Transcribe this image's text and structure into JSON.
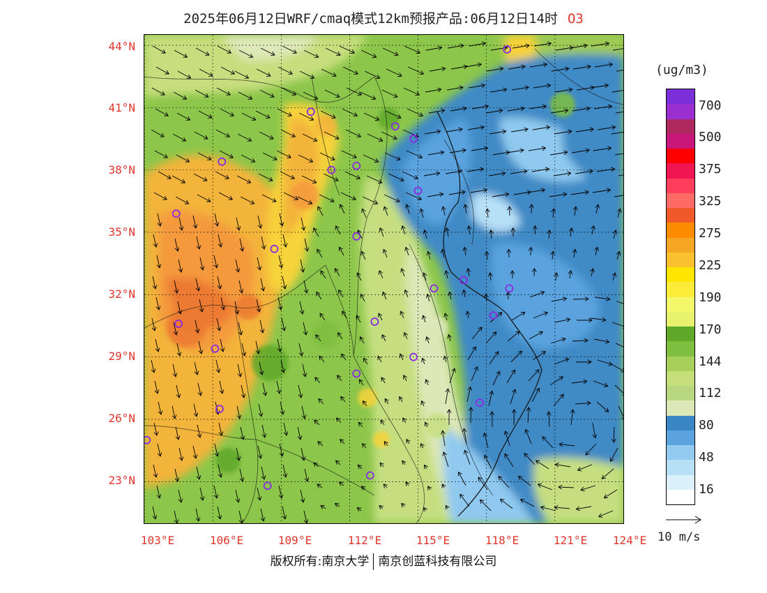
{
  "header": {
    "title": "2025年06月12日WRF/cmaq模式12km预报产品:06月12日14时",
    "species": "O3"
  },
  "map": {
    "lat_labels": [
      "44°N",
      "41°N",
      "38°N",
      "35°N",
      "32°N",
      "29°N",
      "26°N",
      "23°N"
    ],
    "lon_labels": [
      "103°E",
      "106°E",
      "109°E",
      "112°E",
      "115°E",
      "118°E",
      "121°E",
      "124°E"
    ],
    "lon_range": [
      103,
      124
    ],
    "lat_range": [
      21,
      44.5
    ],
    "station_color": "#8a2be2",
    "stations": [
      {
        "lon": 118.9,
        "lat": 43.8
      },
      {
        "lon": 110.3,
        "lat": 40.8
      },
      {
        "lon": 114.0,
        "lat": 40.1
      },
      {
        "lon": 114.8,
        "lat": 39.5
      },
      {
        "lon": 106.4,
        "lat": 38.4
      },
      {
        "lon": 111.2,
        "lat": 38.0
      },
      {
        "lon": 112.3,
        "lat": 38.2
      },
      {
        "lon": 115.0,
        "lat": 37.0
      },
      {
        "lon": 104.4,
        "lat": 35.9
      },
      {
        "lon": 112.3,
        "lat": 34.8
      },
      {
        "lon": 108.7,
        "lat": 34.2
      },
      {
        "lon": 115.7,
        "lat": 32.3
      },
      {
        "lon": 117.0,
        "lat": 32.7
      },
      {
        "lon": 119.0,
        "lat": 32.3
      },
      {
        "lon": 118.3,
        "lat": 31.0
      },
      {
        "lon": 104.5,
        "lat": 30.6
      },
      {
        "lon": 113.1,
        "lat": 30.7
      },
      {
        "lon": 106.1,
        "lat": 29.4
      },
      {
        "lon": 114.8,
        "lat": 29.0
      },
      {
        "lon": 112.3,
        "lat": 28.2
      },
      {
        "lon": 106.3,
        "lat": 26.5
      },
      {
        "lon": 117.7,
        "lat": 26.8
      },
      {
        "lon": 103.1,
        "lat": 25.0
      },
      {
        "lon": 108.4,
        "lat": 22.8
      },
      {
        "lon": 112.9,
        "lat": 23.3
      }
    ]
  },
  "colorbar": {
    "unit": "(ug/m3)",
    "colors": [
      "#7b2fd9",
      "#9a2fd0",
      "#b0295e",
      "#c8177a",
      "#ff0000",
      "#f01652",
      "#ff3f5b",
      "#ff6a66",
      "#f05a28",
      "#ff8c00",
      "#f5a623",
      "#fbc02d",
      "#ffe600",
      "#fdeb3a",
      "#f4f76a",
      "#e9f26e",
      "#5fa829",
      "#7fbf3f",
      "#a6d05a",
      "#c5e07a",
      "#b9d77e",
      "#dde8b8",
      "#3a86c4",
      "#5aa3de",
      "#92cbef",
      "#b7e0f7",
      "#daf0fb",
      "#ffffff"
    ],
    "labels": [
      "700",
      "500",
      "375",
      "325",
      "275",
      "225",
      "190",
      "170",
      "144",
      "112",
      "80",
      "48",
      "16"
    ]
  },
  "wind_reference": {
    "label": "10 m/s"
  },
  "footer": {
    "left": "版权所有:南京大学",
    "right": "南京创蓝科技有限公司"
  }
}
